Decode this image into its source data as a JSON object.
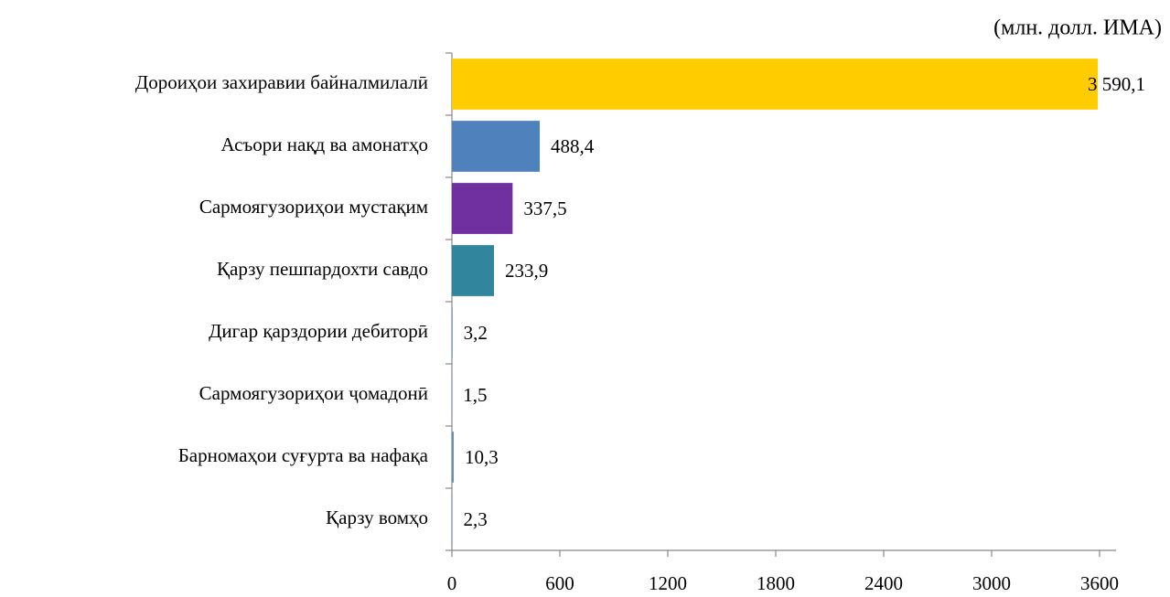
{
  "chart_data": {
    "type": "bar",
    "orientation": "horizontal",
    "subtitle": "(млн. долл. ИМА)",
    "categories": [
      "Дороиҳои захиравии байналмилалӣ",
      "Асъори нақд ва амонатҳо",
      "Сармоягузориҳои мустақим",
      "Қарзу пешпардохти савдо",
      "Дигар қарздории дебиторӣ",
      "Сармоягузориҳои ҷомадонӣ",
      "Барномаҳои суғурта ва нафақа",
      "Қарзу вомҳо"
    ],
    "values": [
      3590.1,
      488.4,
      337.5,
      233.9,
      3.2,
      1.5,
      10.3,
      2.3
    ],
    "value_labels": [
      "3 590,1",
      "488,4",
      "337,5",
      "233,9",
      "3,2",
      "1,5",
      "10,3",
      "2,3"
    ],
    "colors": [
      "#ffcc00",
      "#4f81bd",
      "#7030a0",
      "#31859c",
      "#4f81bd",
      "#4f81bd",
      "#6a8fb5",
      "#4f81bd"
    ],
    "xlim": [
      0,
      3600
    ],
    "xticks": [
      0,
      600,
      1200,
      1800,
      2400,
      3000,
      3600
    ],
    "grid": false
  }
}
